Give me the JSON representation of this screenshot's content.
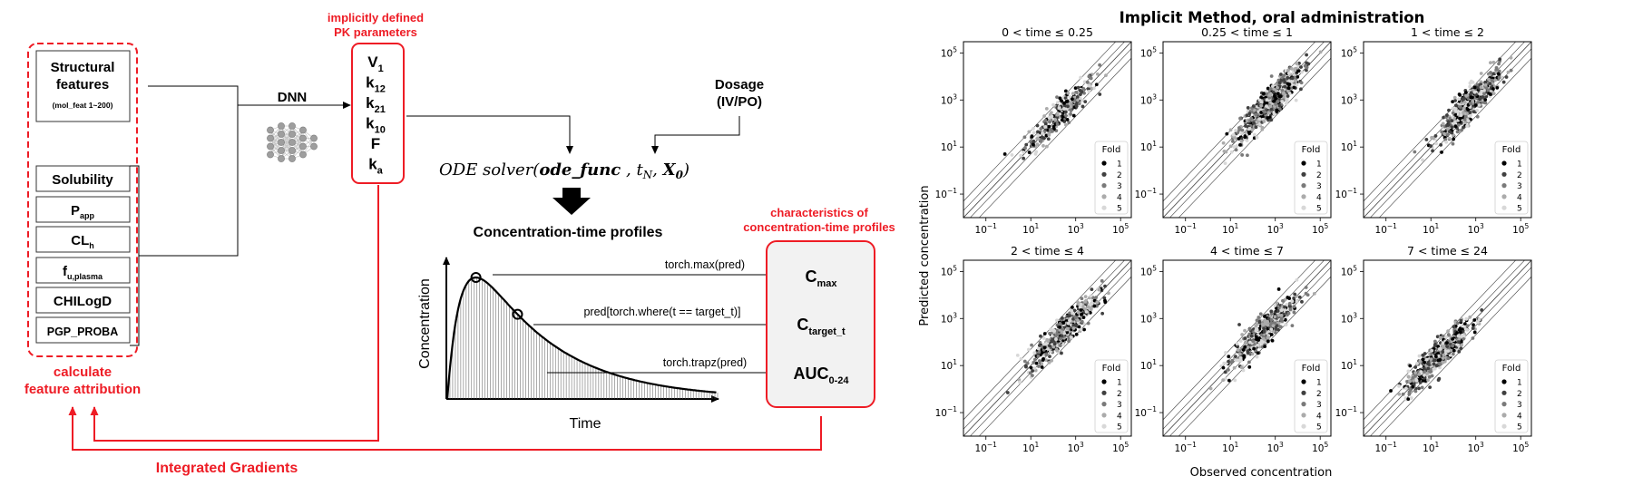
{
  "diagram": {
    "structural": {
      "title": "Structural features",
      "sub": "(mol_feat 1~200)"
    },
    "features": [
      {
        "main": "Solubility",
        "sub": ""
      },
      {
        "main": "P",
        "sub": "app"
      },
      {
        "main": "CL",
        "sub": "h"
      },
      {
        "main": "f",
        "sub": "u,plasma"
      },
      {
        "main": "CHILogD",
        "sub": ""
      },
      {
        "main": "PGP_PROBA",
        "sub": ""
      }
    ],
    "calc_label_1": "calculate",
    "calc_label_2": "feature attribution",
    "dnn_label": "DNN",
    "pk_title_1": "implicitly defined",
    "pk_title_2": "PK parameters",
    "pk_params": [
      {
        "main": "V",
        "sub": "1"
      },
      {
        "main": "k",
        "sub": "12"
      },
      {
        "main": "k",
        "sub": "21"
      },
      {
        "main": "k",
        "sub": "10"
      },
      {
        "main": "F",
        "sub": ""
      },
      {
        "main": "k",
        "sub": "a"
      }
    ],
    "dosage_1": "Dosage",
    "dosage_2": "(IV/PO)",
    "ode": {
      "prefix": "ODE solver(",
      "func": "ode_func",
      "sep1": " , ",
      "t": "t",
      "t_sub": "N",
      "sep2": ", ",
      "x": "X",
      "x_sub": "0",
      "close": ")"
    },
    "profiles_title": "Concentration-time profiles",
    "y_axis": "Concentration",
    "x_axis": "Time",
    "ops": [
      "torch.max(pred)",
      "pred[torch.where(t == target_t)]",
      "torch.trapz(pred)"
    ],
    "char_title_1": "characteristics of",
    "char_title_2": "concentration-time profiles",
    "outputs": [
      {
        "main": "C",
        "sub": "max"
      },
      {
        "main": "C",
        "sub": "target_t"
      },
      {
        "main": "AUC",
        "sub": "0-24"
      }
    ],
    "ig_label": "Integrated Gradients",
    "colors": {
      "red": "#ee1c25",
      "black": "#000000",
      "panel_fill": "#f2f2f2"
    }
  },
  "chart_data": {
    "type": "scatter",
    "title": "Implicit Method, oral administration",
    "xlabel": "Observed concentration",
    "ylabel": "Predicted concentration",
    "scale": "log10",
    "xlim": [
      0.01,
      300000
    ],
    "ylim": [
      0.01,
      300000
    ],
    "xticks": [
      "10^-1",
      "10^1",
      "10^3",
      "10^5"
    ],
    "yticks": [
      "10^-1",
      "10^1",
      "10^3",
      "10^5"
    ],
    "reference_lines": "y = x with 2-fold and 5-fold bands",
    "legend": {
      "title": "Fold",
      "entries": [
        "1",
        "2",
        "3",
        "4",
        "5"
      ],
      "colors": [
        "#000000",
        "#404040",
        "#7a7a7a",
        "#ababab",
        "#d8d8d8"
      ],
      "placement": "lower right"
    },
    "panels": [
      {
        "title": "0 < time ≤ 0.25",
        "center": [
          2.3,
          2.4
        ],
        "spread": 0.75,
        "n": 260
      },
      {
        "title": "0.25 < time ≤ 1",
        "center": [
          2.7,
          2.8
        ],
        "spread": 0.7,
        "n": 650
      },
      {
        "title": "1 < time ≤ 2",
        "center": [
          2.7,
          2.8
        ],
        "spread": 0.65,
        "n": 480
      },
      {
        "title": "2 < time ≤ 4",
        "center": [
          2.5,
          2.5
        ],
        "spread": 0.7,
        "n": 480
      },
      {
        "title": "4 < time ≤ 7",
        "center": [
          2.4,
          2.4
        ],
        "spread": 0.75,
        "n": 420
      },
      {
        "title": "7 < time ≤ 24",
        "center": [
          1.3,
          1.4
        ],
        "spread": 0.75,
        "n": 420
      }
    ]
  }
}
